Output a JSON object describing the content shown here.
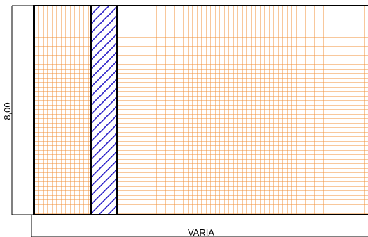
{
  "dimensions": {
    "height_label": "8,00",
    "width_label": "VARIA"
  },
  "colors": {
    "grid": "#f0903a",
    "hatch": "#2a1fc8",
    "outline": "#000000",
    "background": "#ffffff"
  }
}
